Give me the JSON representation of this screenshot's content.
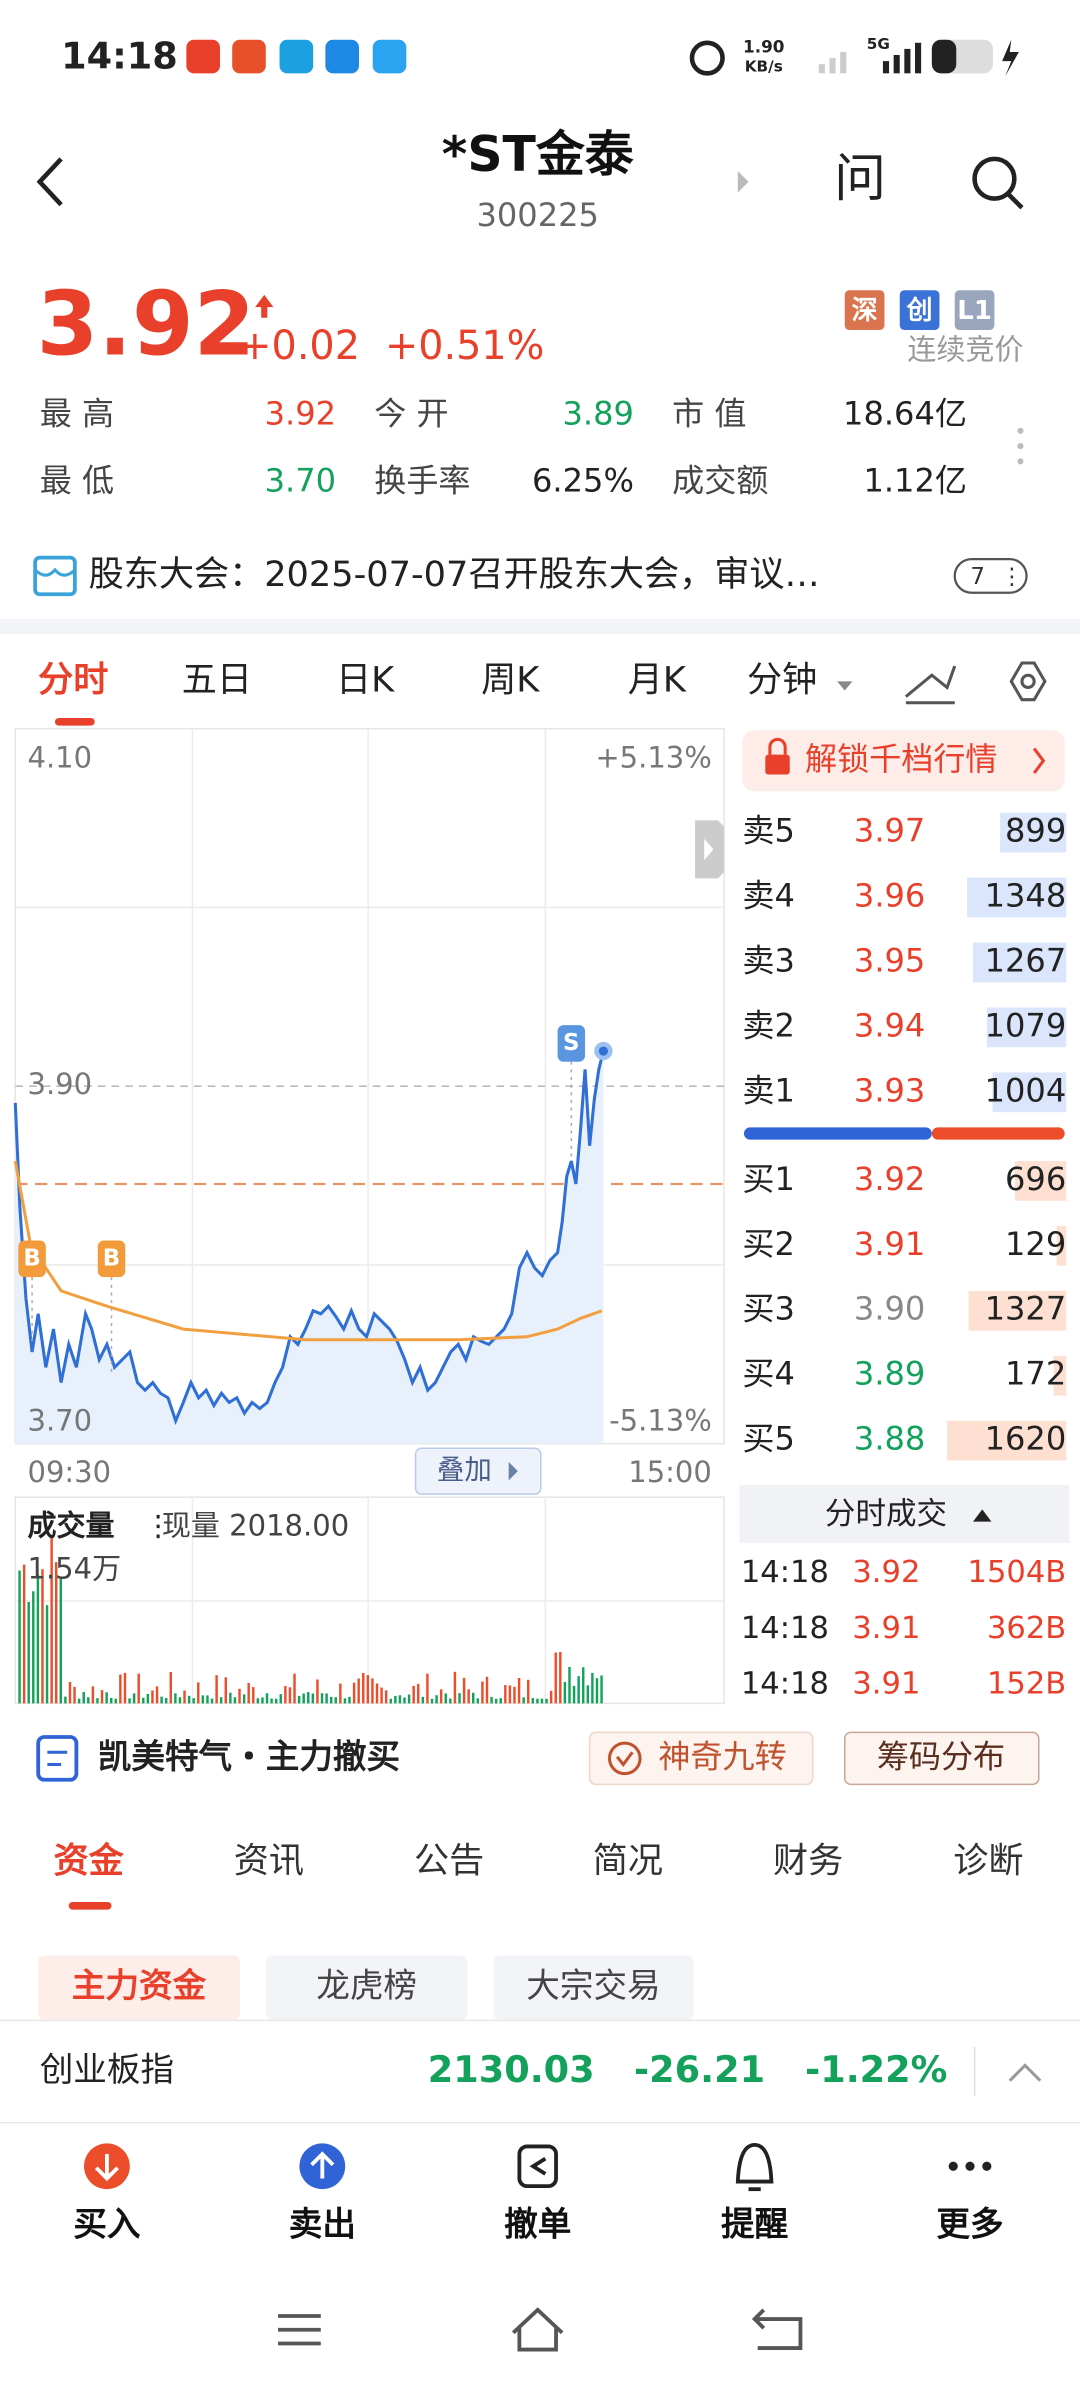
{
  "status_bar": {
    "time": "14:18",
    "speed": "1.90",
    "speed_unit": "KB/s",
    "network": "5G"
  },
  "header": {
    "title": "*ST金泰",
    "code": "300225",
    "ask": "问"
  },
  "quote": {
    "price": "3.92",
    "change": "+0.02",
    "change_pct": "+0.51%",
    "badges": [
      "深",
      "创",
      "L1"
    ],
    "status": "连续竞价"
  },
  "stats": [
    [
      {
        "label": "最 高",
        "value": "3.92",
        "color": "#e8402a"
      },
      {
        "label": "今 开",
        "value": "3.89",
        "color": "#13a15b"
      },
      {
        "label": "市 值",
        "value": "18.64亿",
        "color": "#222222"
      }
    ],
    [
      {
        "label": "最 低",
        "value": "3.70",
        "color": "#13a15b"
      },
      {
        "label": "换手率",
        "value": "6.25%",
        "color": "#222222"
      },
      {
        "label": "成交额",
        "value": "1.12亿",
        "color": "#222222"
      }
    ]
  ],
  "notice": {
    "text": "股东大会：2025-07-07召开股东大会，审议…",
    "count": "7"
  },
  "chart_tabs": [
    "分时",
    "五日",
    "日K",
    "周K",
    "月K",
    "分钟"
  ],
  "chart": {
    "y_labels": [
      "4.10",
      "3.90",
      "3.70"
    ],
    "pct_labels": [
      "+5.13%",
      "-5.13%"
    ],
    "time_labels": [
      "09:30",
      "15:00"
    ],
    "overlay": "叠加",
    "trade_marks": [
      "B",
      "B",
      "S"
    ]
  },
  "volume": {
    "title": "成交量",
    "current": "现量 2018.00",
    "max": "1.54万"
  },
  "order_book": {
    "unlock": "解锁千档行情",
    "asks": [
      {
        "label": "卖5",
        "price": "3.97",
        "volume": 899,
        "color": "#e8402a"
      },
      {
        "label": "卖4",
        "price": "3.96",
        "volume": 1348,
        "color": "#e8402a"
      },
      {
        "label": "卖3",
        "price": "3.95",
        "volume": 1267,
        "color": "#e8402a"
      },
      {
        "label": "卖2",
        "price": "3.94",
        "volume": 1079,
        "color": "#e8402a"
      },
      {
        "label": "卖1",
        "price": "3.93",
        "volume": 1004,
        "color": "#e8402a"
      }
    ],
    "bids": [
      {
        "label": "买1",
        "price": "3.92",
        "volume": 696,
        "color": "#e8402a"
      },
      {
        "label": "买2",
        "price": "3.91",
        "volume": 129,
        "color": "#e8402a"
      },
      {
        "label": "买3",
        "price": "3.90",
        "volume": 1327,
        "color": "#888888"
      },
      {
        "label": "买4",
        "price": "3.89",
        "volume": 172,
        "color": "#13a15b"
      },
      {
        "label": "买5",
        "price": "3.88",
        "volume": 1620,
        "color": "#13a15b"
      }
    ]
  },
  "trades": {
    "title": "分时成交",
    "rows": [
      [
        "14:18",
        "3.92",
        "1504B"
      ],
      [
        "14:18",
        "3.91",
        "362B"
      ],
      [
        "14:18",
        "3.91",
        "152B"
      ]
    ]
  },
  "strategy": {
    "text": "凯美特气・主力撤买",
    "buttons": [
      "神奇九转",
      "筹码分布"
    ]
  },
  "info_tabs": [
    "资金",
    "资讯",
    "公告",
    "简况",
    "财务",
    "诊断"
  ],
  "sub_tabs": [
    "主力资金",
    "龙虎榜",
    "大宗交易"
  ],
  "index_bar": {
    "name": "创业板指",
    "value": "2130.03",
    "change": "-26.21",
    "change_pct": "-1.22%"
  },
  "bottom_nav": [
    "买入",
    "卖出",
    "撤单",
    "提醒",
    "更多"
  ]
}
